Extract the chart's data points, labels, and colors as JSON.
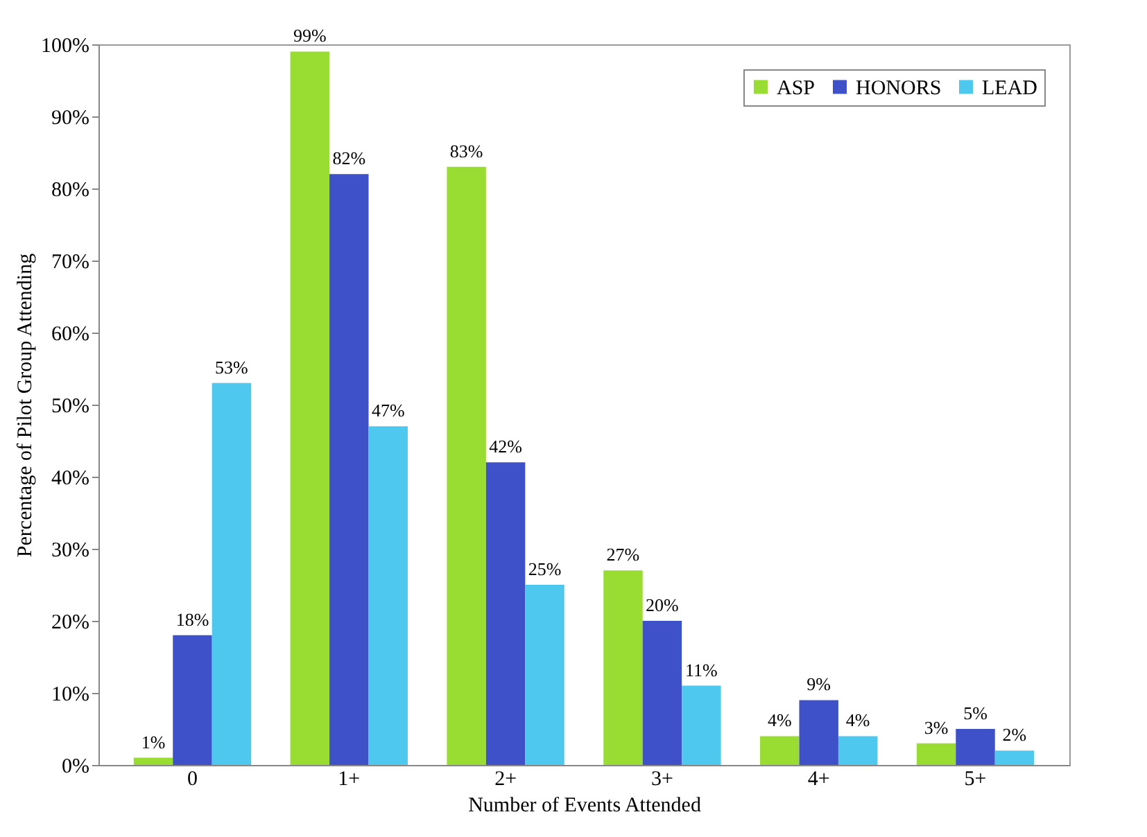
{
  "chart_data": {
    "type": "bar",
    "xlabel": "Number of Events Attended",
    "ylabel": "Percentage of Pilot Group Attending",
    "categories": [
      "0",
      "1+",
      "2+",
      "3+",
      "4+",
      "5+"
    ],
    "series": [
      {
        "name": "ASP",
        "color": "#99dd33",
        "values": [
          1,
          99,
          83,
          27,
          4,
          3
        ],
        "value_labels": [
          "1%",
          "99%",
          "83%",
          "27%",
          "4%",
          "3%"
        ]
      },
      {
        "name": "HONORS",
        "color": "#3f51c8",
        "values": [
          18,
          82,
          42,
          20,
          9,
          5
        ],
        "value_labels": [
          "18%",
          "82%",
          "42%",
          "20%",
          "9%",
          "5%"
        ]
      },
      {
        "name": "LEAD",
        "color": "#4fc8ef",
        "values": [
          53,
          47,
          25,
          11,
          4,
          2
        ],
        "value_labels": [
          "53%",
          "47%",
          "25%",
          "11%",
          "4%",
          "2%"
        ]
      }
    ],
    "ylim": [
      0,
      100
    ],
    "yticks": [
      {
        "value": 0,
        "label": "0%"
      },
      {
        "value": 10,
        "label": "10%"
      },
      {
        "value": 20,
        "label": "20%"
      },
      {
        "value": 30,
        "label": "30%"
      },
      {
        "value": 40,
        "label": "40%"
      },
      {
        "value": 50,
        "label": "50%"
      },
      {
        "value": 60,
        "label": "60%"
      },
      {
        "value": 70,
        "label": "70%"
      },
      {
        "value": 80,
        "label": "80%"
      },
      {
        "value": 90,
        "label": "90%"
      },
      {
        "value": 100,
        "label": "100%"
      }
    ],
    "legend": "top right",
    "grid": false
  }
}
